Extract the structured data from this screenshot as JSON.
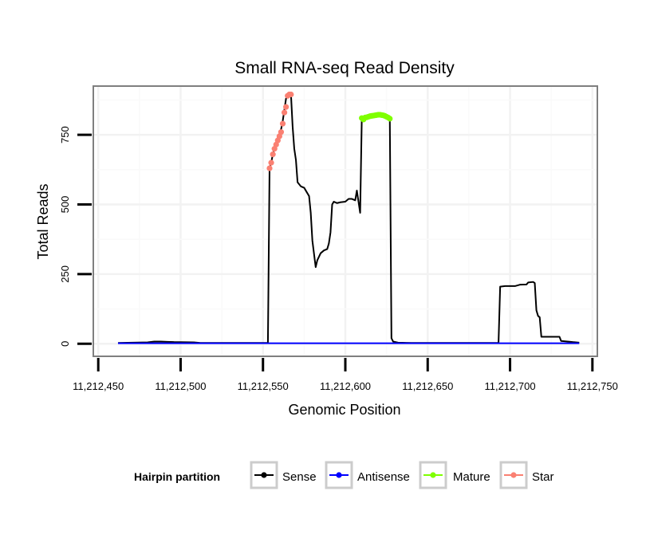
{
  "chart_data": {
    "type": "line",
    "title": "Small RNA-seq Read Density",
    "xlabel": "Genomic Position",
    "ylabel": "Total Reads",
    "xlim": [
      11212447,
      11212753
    ],
    "ylim": [
      -45,
      925
    ],
    "x_ticks": [
      {
        "value": 11212450,
        "label": "11,212,450"
      },
      {
        "value": 11212500,
        "label": "11,212,500"
      },
      {
        "value": 11212550,
        "label": "11,212,550"
      },
      {
        "value": 11212600,
        "label": "11,212,600"
      },
      {
        "value": 11212650,
        "label": "11,212,650"
      },
      {
        "value": 11212700,
        "label": "11,212,700"
      },
      {
        "value": 11212750,
        "label": "11,212,750"
      }
    ],
    "y_ticks": [
      {
        "value": 0,
        "label": "0"
      },
      {
        "value": 250,
        "label": "250"
      },
      {
        "value": 500,
        "label": "500"
      },
      {
        "value": 750,
        "label": "750"
      }
    ],
    "grid": true,
    "legend": {
      "title": "Hairpin partition",
      "position": "bottom",
      "entries": [
        {
          "name": "Sense",
          "color": "#000000"
        },
        {
          "name": "Antisense",
          "color": "#0000ff"
        },
        {
          "name": "Mature",
          "color": "#7fff00"
        },
        {
          "name": "Star",
          "color": "#fa8072"
        }
      ]
    },
    "series": [
      {
        "name": "Sense",
        "color": "#000000",
        "markers": false,
        "points": [
          [
            11212462,
            3
          ],
          [
            11212480,
            5
          ],
          [
            11212484,
            8
          ],
          [
            11212488,
            8
          ],
          [
            11212492,
            7
          ],
          [
            11212496,
            6
          ],
          [
            11212508,
            5
          ],
          [
            11212512,
            3
          ],
          [
            11212530,
            3
          ],
          [
            11212540,
            3
          ],
          [
            11212553,
            3
          ],
          [
            11212554,
            630
          ],
          [
            11212555,
            650
          ],
          [
            11212556,
            680
          ],
          [
            11212557,
            700
          ],
          [
            11212558,
            720
          ],
          [
            11212559,
            740
          ],
          [
            11212560,
            750
          ],
          [
            11212561,
            770
          ],
          [
            11212562,
            800
          ],
          [
            11212563,
            840
          ],
          [
            11212564,
            880
          ],
          [
            11212565,
            895
          ],
          [
            11212566,
            895
          ],
          [
            11212567,
            895
          ],
          [
            11212568,
            780
          ],
          [
            11212569,
            700
          ],
          [
            11212570,
            660
          ],
          [
            11212571,
            580
          ],
          [
            11212573,
            565
          ],
          [
            11212575,
            560
          ],
          [
            11212576,
            550
          ],
          [
            11212578,
            530
          ],
          [
            11212579,
            470
          ],
          [
            11212580,
            370
          ],
          [
            11212582,
            275
          ],
          [
            11212583,
            300
          ],
          [
            11212585,
            325
          ],
          [
            11212587,
            335
          ],
          [
            11212589,
            340
          ],
          [
            11212590,
            360
          ],
          [
            11212591,
            400
          ],
          [
            11212592,
            500
          ],
          [
            11212593,
            510
          ],
          [
            11212595,
            505
          ],
          [
            11212597,
            508
          ],
          [
            11212600,
            510
          ],
          [
            11212602,
            520
          ],
          [
            11212604,
            520
          ],
          [
            11212606,
            515
          ],
          [
            11212607,
            550
          ],
          [
            11212608,
            510
          ],
          [
            11212609,
            470
          ],
          [
            11212610,
            810
          ],
          [
            11212614,
            815
          ],
          [
            11212618,
            820
          ],
          [
            11212622,
            822
          ],
          [
            11212626,
            815
          ],
          [
            11212627,
            810
          ],
          [
            11212628,
            20
          ],
          [
            11212629,
            8
          ],
          [
            11212632,
            4
          ],
          [
            11212640,
            3
          ],
          [
            11212660,
            3
          ],
          [
            11212680,
            3
          ],
          [
            11212693,
            3
          ],
          [
            11212694,
            205
          ],
          [
            11212697,
            207
          ],
          [
            11212700,
            207
          ],
          [
            11212703,
            207
          ],
          [
            11212706,
            212
          ],
          [
            11212710,
            213
          ],
          [
            11212711,
            220
          ],
          [
            11212714,
            222
          ],
          [
            11212715,
            218
          ],
          [
            11212716,
            120
          ],
          [
            11212717,
            100
          ],
          [
            11212718,
            95
          ],
          [
            11212719,
            25
          ],
          [
            11212722,
            25
          ],
          [
            11212725,
            25
          ],
          [
            11212730,
            25
          ],
          [
            11212731,
            10
          ],
          [
            11212735,
            8
          ],
          [
            11212738,
            6
          ],
          [
            11212742,
            4
          ]
        ]
      },
      {
        "name": "Antisense",
        "color": "#0000ff",
        "markers": false,
        "points": [
          [
            11212462,
            2
          ],
          [
            11212742,
            2
          ]
        ]
      },
      {
        "name": "Mature",
        "color": "#7fff00",
        "markers": true,
        "points": [
          [
            11212610,
            810
          ],
          [
            11212611,
            805
          ],
          [
            11212612,
            812
          ],
          [
            11212613,
            813
          ],
          [
            11212614,
            815
          ],
          [
            11212615,
            817
          ],
          [
            11212616,
            818
          ],
          [
            11212617,
            819
          ],
          [
            11212618,
            820
          ],
          [
            11212619,
            821
          ],
          [
            11212620,
            822
          ],
          [
            11212621,
            822
          ],
          [
            11212622,
            821
          ],
          [
            11212623,
            820
          ],
          [
            11212624,
            818
          ],
          [
            11212625,
            815
          ],
          [
            11212626,
            812
          ],
          [
            11212627,
            808
          ]
        ]
      },
      {
        "name": "Star",
        "color": "#fa8072",
        "markers": true,
        "points": [
          [
            11212554,
            630
          ],
          [
            11212555,
            650
          ],
          [
            11212556,
            680
          ],
          [
            11212557,
            700
          ],
          [
            11212558,
            715
          ],
          [
            11212559,
            730
          ],
          [
            11212560,
            745
          ],
          [
            11212561,
            760
          ],
          [
            11212562,
            790
          ],
          [
            11212563,
            830
          ],
          [
            11212564,
            850
          ],
          [
            11212565,
            890
          ],
          [
            11212566,
            895
          ],
          [
            11212567,
            895
          ]
        ]
      }
    ]
  }
}
